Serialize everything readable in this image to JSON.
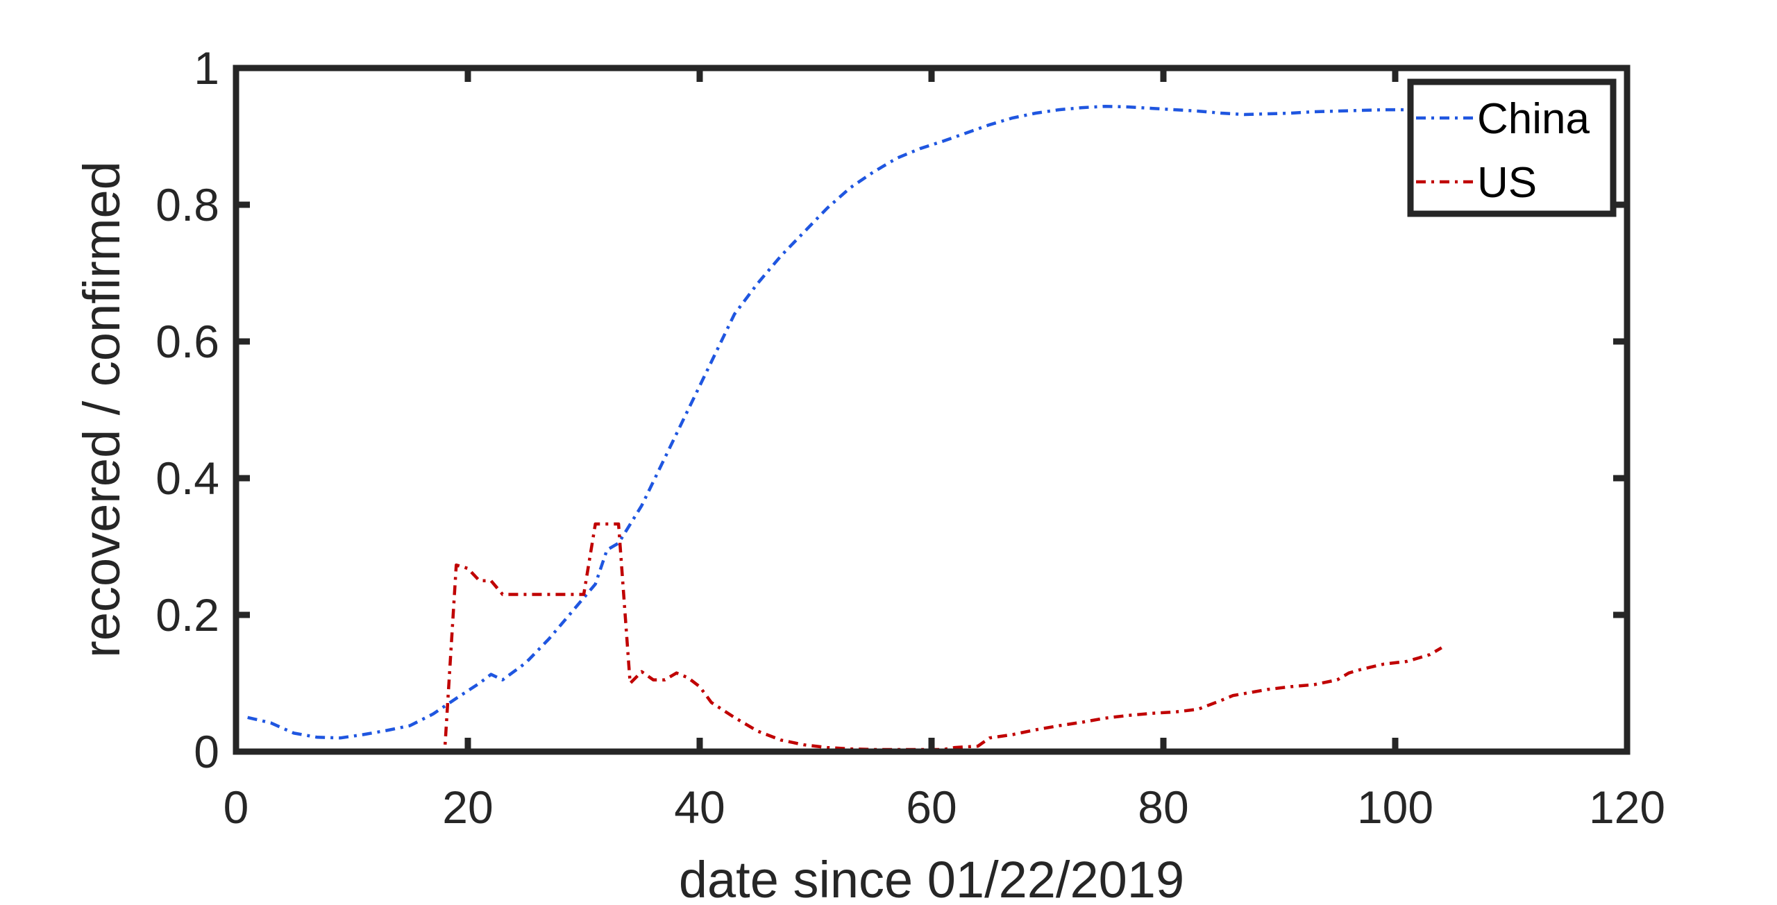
{
  "chart_data": {
    "type": "line",
    "xlabel": "date since 01/22/2019",
    "ylabel": "recovered / confirmed",
    "xlim": [
      0,
      120
    ],
    "ylim": [
      0,
      1
    ],
    "xticks": [
      0,
      20,
      40,
      60,
      80,
      100,
      120
    ],
    "xtick_labels": [
      "0",
      "20",
      "40",
      "60",
      "80",
      "100",
      "120"
    ],
    "yticks": [
      0,
      0.2,
      0.4,
      0.6,
      0.8,
      1
    ],
    "ytick_labels": [
      "0",
      "0.2",
      "0.4",
      "0.6",
      "0.8",
      "1"
    ],
    "grid": false,
    "legend_position": "top-right",
    "series": [
      {
        "name": "China",
        "color": "#1f56e0",
        "line_style": "dash-dot",
        "x": [
          1,
          3,
          5,
          7,
          9,
          11,
          13,
          15,
          17,
          19,
          21,
          22,
          23,
          25,
          27,
          29,
          31,
          32,
          33,
          35,
          37,
          39,
          41,
          43,
          45,
          47,
          49,
          51,
          53,
          55,
          57,
          59,
          61,
          63,
          65,
          67,
          69,
          71,
          73,
          75,
          77,
          79,
          81,
          83,
          85,
          87,
          89,
          91,
          93,
          95,
          97,
          99,
          101
        ],
        "y": [
          0.05,
          0.042,
          0.027,
          0.021,
          0.02,
          0.025,
          0.031,
          0.038,
          0.055,
          0.078,
          0.1,
          0.113,
          0.105,
          0.13,
          0.165,
          0.205,
          0.245,
          0.295,
          0.305,
          0.36,
          0.43,
          0.5,
          0.57,
          0.64,
          0.685,
          0.725,
          0.76,
          0.795,
          0.825,
          0.848,
          0.868,
          0.882,
          0.893,
          0.905,
          0.917,
          0.927,
          0.934,
          0.939,
          0.942,
          0.944,
          0.943,
          0.941,
          0.939,
          0.937,
          0.934,
          0.932,
          0.933,
          0.934,
          0.936,
          0.937,
          0.938,
          0.939,
          0.939
        ]
      },
      {
        "name": "US",
        "color": "#c00000",
        "line_style": "dash-dot",
        "x": [
          1,
          10,
          18,
          19,
          20,
          21,
          22,
          23,
          24,
          26,
          28,
          30,
          31,
          32,
          33,
          34,
          35,
          36,
          37,
          38,
          39,
          40,
          41,
          43,
          45,
          47,
          49,
          51,
          53,
          55,
          57,
          59,
          61,
          62,
          64,
          65,
          67,
          69,
          71,
          73,
          75,
          77,
          79,
          81,
          83,
          85,
          86,
          87,
          89,
          91,
          93,
          95,
          96,
          97,
          99,
          101,
          102,
          103,
          104
        ],
        "y": [
          0,
          0,
          0,
          0.273,
          0.268,
          0.25,
          0.25,
          0.23,
          0.23,
          0.23,
          0.23,
          0.23,
          0.333,
          0.333,
          0.333,
          0.1,
          0.117,
          0.105,
          0.105,
          0.115,
          0.108,
          0.095,
          0.072,
          0.05,
          0.03,
          0.017,
          0.01,
          0.006,
          0.004,
          0.003,
          0.003,
          0.003,
          0.003,
          0.006,
          0.008,
          0.02,
          0.025,
          0.032,
          0.038,
          0.043,
          0.049,
          0.053,
          0.056,
          0.058,
          0.062,
          0.075,
          0.082,
          0.085,
          0.091,
          0.095,
          0.098,
          0.105,
          0.115,
          0.12,
          0.128,
          0.132,
          0.137,
          0.142,
          0.152
        ]
      }
    ]
  }
}
